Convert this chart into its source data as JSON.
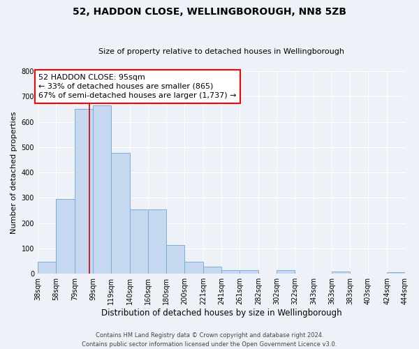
{
  "title": "52, HADDON CLOSE, WELLINGBOROUGH, NN8 5ZB",
  "subtitle": "Size of property relative to detached houses in Wellingborough",
  "xlabel": "Distribution of detached houses by size in Wellingborough",
  "ylabel": "Number of detached properties",
  "bar_edges": [
    38,
    58,
    79,
    99,
    119,
    140,
    160,
    180,
    200,
    221,
    241,
    261,
    282,
    302,
    322,
    343,
    363,
    383,
    403,
    424,
    444
  ],
  "bar_heights": [
    48,
    295,
    652,
    665,
    478,
    253,
    253,
    113,
    48,
    28,
    15,
    15,
    0,
    13,
    0,
    0,
    8,
    0,
    0,
    7
  ],
  "bar_color": "#c5d8f0",
  "bar_edgecolor": "#7bafd4",
  "vline_x": 95,
  "vline_color": "#cc0000",
  "ylim": [
    0,
    800
  ],
  "yticks": [
    0,
    100,
    200,
    300,
    400,
    500,
    600,
    700,
    800
  ],
  "annotation_line1": "52 HADDON CLOSE: 95sqm",
  "annotation_line2": "← 33% of detached houses are smaller (865)",
  "annotation_line3": "67% of semi-detached houses are larger (1,737) →",
  "footer_line1": "Contains HM Land Registry data © Crown copyright and database right 2024.",
  "footer_line2": "Contains public sector information licensed under the Open Government Licence v3.0.",
  "bg_color": "#eef2f8",
  "grid_color": "#ffffff",
  "title_fontsize": 10,
  "subtitle_fontsize": 8,
  "xlabel_fontsize": 8.5,
  "ylabel_fontsize": 8,
  "tick_fontsize": 7,
  "footer_fontsize": 6,
  "ann_fontsize": 8
}
